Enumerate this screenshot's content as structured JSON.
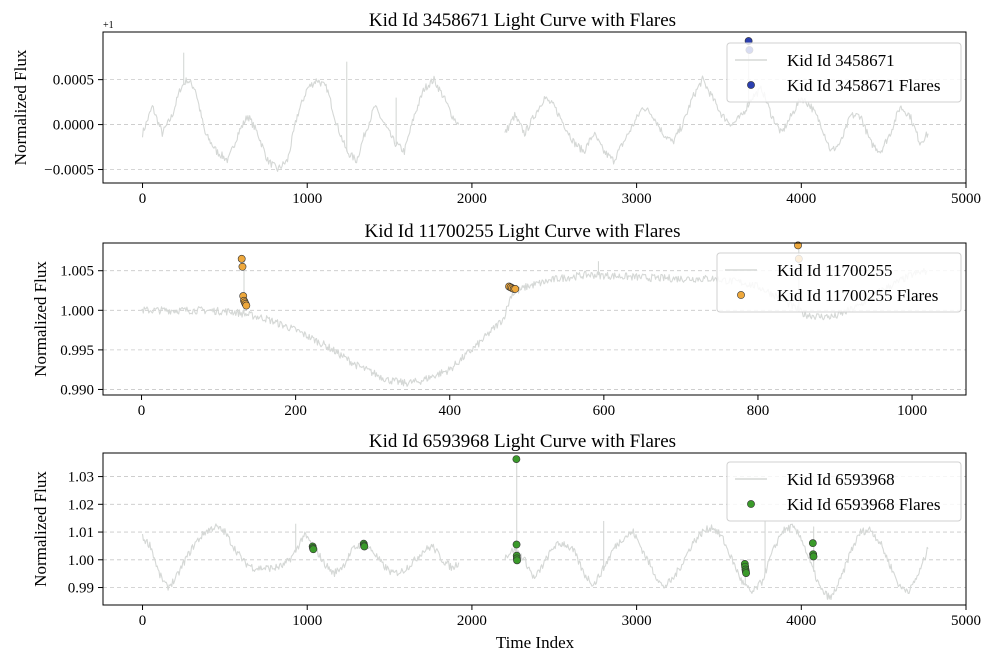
{
  "figure": {
    "xlabel": "Time Index"
  },
  "chart_data": [
    {
      "type": "line",
      "title": "Kid Id 3458671 Light Curve with Flares",
      "ylabel": "Normalized Flux",
      "y_offset_label": "+1",
      "xlim": [
        -240,
        5000
      ],
      "ylim": [
        -0.00065,
        0.00103
      ],
      "xticks": [
        0,
        1000,
        2000,
        3000,
        4000,
        5000
      ],
      "xtick_labels": [
        "0",
        "1000",
        "2000",
        "3000",
        "4000",
        "5000"
      ],
      "yticks": [
        -0.0005,
        0.0,
        0.0005
      ],
      "ytick_labels": [
        "−0.0005",
        "0.0000",
        "0.0005"
      ],
      "grid": true,
      "legend_position": "top-right",
      "series": [
        {
          "name": "Kid Id 3458671",
          "kind": "line",
          "color": "#d5d8d6",
          "segments": [
            {
              "x": [
                0,
                60,
                120,
                180,
                230,
                270,
                320,
                380,
                450,
                520,
                580,
                640,
                700,
                760,
                820,
                880,
                940,
                1000,
                1060,
                1120,
                1180,
                1240,
                1300,
                1350,
                1410,
                1470,
                1530,
                1590,
                1650,
                1710,
                1770,
                1830,
                1880,
                1920
              ],
              "y": [
                -0.0001,
                0.0002,
                -0.0001,
                0.0001,
                0.0004,
                0.0005,
                0.0004,
                -0.0001,
                -0.0003,
                -0.0004,
                -0.0001,
                0.0001,
                -0.0001,
                -0.0004,
                -0.0005,
                -0.0004,
                0.0001,
                0.0004,
                0.0005,
                0.0004,
                0.0,
                -0.0003,
                -0.0004,
                -0.0001,
                0.0002,
                0.0,
                -0.0002,
                -0.0003,
                0.0001,
                0.0004,
                0.0005,
                0.0003,
                0.0001,
                0.0
              ]
            },
            {
              "x": [
                2200,
                2260,
                2320,
                2380,
                2440,
                2500,
                2560,
                2620,
                2680,
                2740,
                2800,
                2860,
                2920,
                2980,
                3040,
                3100,
                3160,
                3220,
                3280,
                3340,
                3400,
                3460,
                3520,
                3580,
                3640,
                3700,
                3760,
                3820,
                3880,
                3940,
                4000,
                4060,
                4120,
                4180,
                4240,
                4300,
                4360,
                4420,
                4480,
                4540,
                4600,
                4660,
                4720,
                4770
              ],
              "y": [
                -0.0001,
                0.0001,
                -0.0001,
                0.0001,
                0.0003,
                0.0002,
                0.0,
                -0.0002,
                -0.0003,
                -0.0001,
                -0.0003,
                -0.0004,
                -0.0002,
                0.0,
                0.0002,
                0.0001,
                -0.0001,
                -0.0002,
                0.0,
                0.0003,
                0.0005,
                0.0003,
                0.0001,
                0.0,
                0.0001,
                0.0003,
                0.0004,
                0.0001,
                -0.0001,
                0.0001,
                0.0003,
                0.0002,
                0.0,
                -0.0003,
                -0.0002,
                0.0001,
                0.0001,
                -0.0002,
                -0.0003,
                -0.0001,
                0.0002,
                0.0001,
                -0.0002,
                -0.0001
              ]
            }
          ],
          "spikes": [
            {
              "x": 250,
              "y": 0.0008
            },
            {
              "x": 1240,
              "y": 0.0007
            },
            {
              "x": 1540,
              "y": 0.0003
            },
            {
              "x": 3680,
              "y": 0.0009
            }
          ]
        },
        {
          "name": "Kid Id 3458671 Flares",
          "kind": "scatter",
          "color": "#2b3fb0",
          "x": [
            3680,
            3685
          ],
          "y": [
            0.00093,
            0.00083
          ]
        }
      ]
    },
    {
      "type": "line",
      "title": "Kid Id 11700255 Light Curve with Flares",
      "ylabel": "Normalized Flux",
      "xlim": [
        -50,
        1070
      ],
      "ylim": [
        0.9893,
        1.0085
      ],
      "xticks": [
        0,
        200,
        400,
        600,
        800,
        1000
      ],
      "xtick_labels": [
        "0",
        "200",
        "400",
        "600",
        "800",
        "1000"
      ],
      "yticks": [
        0.99,
        0.995,
        1.0,
        1.005
      ],
      "ytick_labels": [
        "0.990",
        "0.995",
        "1.000",
        "1.005"
      ],
      "grid": true,
      "legend_position": "top-right",
      "series": [
        {
          "name": "Kid Id 11700255",
          "kind": "line",
          "color": "#d5d8d6",
          "segments": [
            {
              "x": [
                0,
                40,
                80,
                120,
                160,
                200,
                240,
                280,
                320,
                340,
                360,
                400,
                440,
                470,
                480,
                500,
                540,
                580,
                620,
                660,
                700,
                740,
                780,
                800,
                830,
                860,
                880,
                900,
                930,
                960,
                1000,
                1020
              ],
              "y": [
                1.0,
                1.0,
                1.0,
                0.9998,
                0.999,
                0.9975,
                0.9955,
                0.993,
                0.9912,
                0.9908,
                0.991,
                0.9925,
                0.996,
                0.999,
                1.002,
                1.003,
                1.004,
                1.0045,
                1.0043,
                1.0041,
                1.004,
                1.004,
                1.0035,
                1.003,
                1.0015,
                0.9995,
                0.9992,
                0.9992,
                1.0005,
                1.0025,
                1.0045,
                1.005
              ]
            }
          ],
          "spikes": [
            {
              "x": 133,
              "y": 1.0065
            },
            {
              "x": 483,
              "y": 1.003
            },
            {
              "x": 593,
              "y": 1.0062
            },
            {
              "x": 853,
              "y": 1.008
            }
          ]
        },
        {
          "name": "Kid Id 11700255 Flares",
          "kind": "scatter",
          "color": "#eea83c",
          "x": [
            130,
            131,
            132,
            133,
            134,
            135,
            136,
            477,
            479,
            481,
            483,
            485,
            852,
            853
          ],
          "y": [
            1.0065,
            1.0055,
            1.0018,
            1.0012,
            1.001,
            1.0008,
            1.0006,
            1.003,
            1.0029,
            1.0028,
            1.0027,
            1.0027,
            1.0082,
            1.0065
          ]
        }
      ]
    },
    {
      "type": "line",
      "title": "Kid Id 6593968 Light Curve with Flares",
      "ylabel": "Normalized Flux",
      "xlim": [
        -240,
        5000
      ],
      "ylim": [
        0.9837,
        1.0385
      ],
      "xticks": [
        0,
        1000,
        2000,
        3000,
        4000,
        5000
      ],
      "xtick_labels": [
        "0",
        "1000",
        "2000",
        "3000",
        "4000",
        "5000"
      ],
      "yticks": [
        0.99,
        1.0,
        1.01,
        1.02,
        1.03
      ],
      "ytick_labels": [
        "0.99",
        "1.00",
        "1.01",
        "1.02",
        "1.03"
      ],
      "grid": true,
      "legend_position": "top-right",
      "series": [
        {
          "name": "Kid Id 6593968",
          "kind": "line",
          "color": "#d5d8d6",
          "segments": [
            {
              "x": [
                0,
                50,
                100,
                150,
                200,
                260,
                320,
                380,
                440,
                500,
                560,
                620,
                680,
                740,
                800,
                860,
                920,
                980,
                1040,
                1100,
                1160,
                1220,
                1280,
                1340,
                1400,
                1460,
                1520,
                1580,
                1640,
                1700,
                1760,
                1820,
                1880,
                1920
              ],
              "y": [
                1.008,
                1.005,
                0.995,
                0.99,
                0.993,
                1.0,
                1.006,
                1.01,
                1.012,
                1.01,
                1.004,
                0.999,
                0.997,
                0.997,
                0.997,
                0.998,
                1.002,
                1.009,
                1.005,
                0.999,
                0.995,
                0.998,
                1.004,
                1.006,
                1.003,
                0.998,
                0.995,
                0.996,
                0.999,
                1.003,
                1.005,
                1.0,
                0.997,
                0.999
              ]
            },
            {
              "x": [
                2200,
                2260,
                2320,
                2380,
                2440,
                2500,
                2560,
                2620,
                2680,
                2740,
                2800,
                2860,
                2920,
                2980,
                3040,
                3100,
                3160,
                3220,
                3280,
                3340,
                3400,
                3460,
                3520,
                3580,
                3640,
                3700,
                3760,
                3820,
                3880,
                3940,
                4000,
                4060,
                4120,
                4180,
                4240,
                4300,
                4360,
                4420,
                4480,
                4540,
                4600,
                4660,
                4720,
                4770
              ],
              "y": [
                1.001,
                1.004,
                1.0,
                0.993,
                0.999,
                1.005,
                1.006,
                1.003,
                0.995,
                0.991,
                0.997,
                1.004,
                1.008,
                1.01,
                1.003,
                0.996,
                0.99,
                0.993,
                0.999,
                1.006,
                1.01,
                1.012,
                1.008,
                1.0,
                0.992,
                0.988,
                0.992,
                1.002,
                1.01,
                1.012,
                1.008,
                0.998,
                0.989,
                0.986,
                0.993,
                1.003,
                1.01,
                1.011,
                1.006,
                0.998,
                0.99,
                0.989,
                0.996,
                1.004
              ]
            }
          ],
          "spikes": [
            {
              "x": 930,
              "y": 1.013
            },
            {
              "x": 1035,
              "y": 1.0055
            },
            {
              "x": 1345,
              "y": 1.0065
            },
            {
              "x": 2272,
              "y": 1.036
            },
            {
              "x": 2800,
              "y": 1.014
            },
            {
              "x": 3660,
              "y": 0.999
            },
            {
              "x": 3780,
              "y": 1.014
            },
            {
              "x": 4075,
              "y": 1.012
            }
          ]
        },
        {
          "name": "Kid Id 6593968 Flares",
          "kind": "scatter",
          "color": "#3a9a2a",
          "x": [
            1033,
            1035,
            1037,
            1343,
            1345,
            1347,
            2270,
            2271,
            2272,
            2273,
            2274,
            3657,
            3659,
            3661,
            3663,
            3665,
            4070,
            4072,
            4074
          ],
          "y": [
            1.0048,
            1.0042,
            1.0038,
            1.0058,
            1.0052,
            1.0048,
            1.0363,
            1.0055,
            1.0015,
            1.0005,
            0.9998,
            0.9985,
            0.9975,
            0.9965,
            0.9958,
            0.9952,
            1.006,
            1.002,
            1.0012
          ]
        }
      ]
    }
  ]
}
